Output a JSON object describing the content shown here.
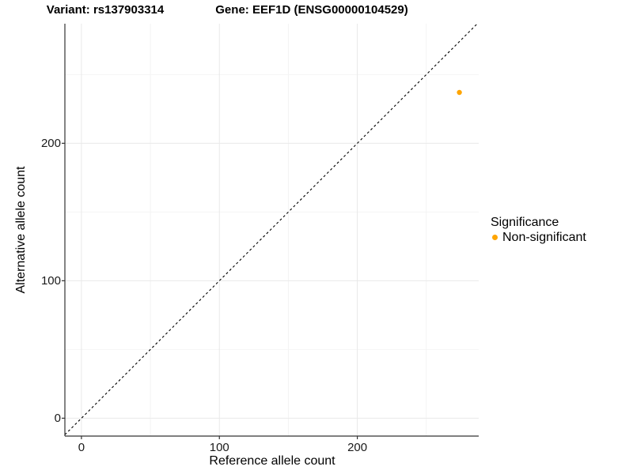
{
  "header": {
    "variant_title": "Variant: rs137903314",
    "gene_title": "Gene: EEF1D (ENSG00000104529)"
  },
  "chart_data": {
    "type": "scatter",
    "xlabel": "Reference allele count",
    "ylabel": "Alternative allele count",
    "xlim": [
      -12,
      288
    ],
    "ylim": [
      -13,
      287
    ],
    "x_ticks": [
      0,
      100,
      200
    ],
    "y_ticks": [
      0,
      100,
      200
    ],
    "x_minor_ticks": [
      50,
      150,
      250
    ],
    "y_minor_ticks": [
      50,
      150,
      250
    ],
    "grid": true,
    "identity_line": {
      "style": "dashed",
      "color": "#000000",
      "slope": 1,
      "intercept": 0
    },
    "series": [
      {
        "name": "Non-significant",
        "color": "#FFA500",
        "points": [
          {
            "x": 274,
            "y": 237
          }
        ]
      }
    ],
    "legend": {
      "title": "Significance",
      "position": "right",
      "entries": [
        {
          "label": "Non-significant",
          "color": "#FFA500"
        }
      ]
    },
    "colors": {
      "axis_line": "#333333",
      "grid_major": "#e9e9e9",
      "grid_minor": "#f4f4f4",
      "tick_mark": "#333333",
      "background": "#ffffff"
    }
  }
}
